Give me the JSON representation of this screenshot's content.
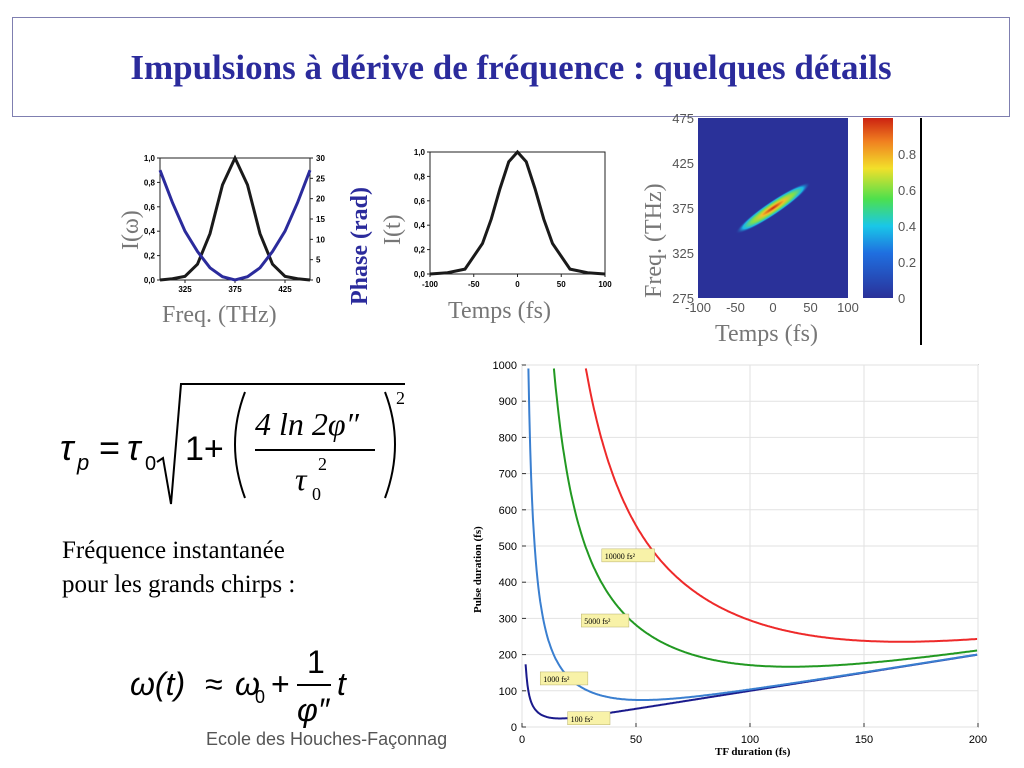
{
  "slide": {
    "title": "Impulsions à dérive de fréquence : quelques détails",
    "instant_freq_line1": "Fréquence instantanée",
    "instant_freq_line2": "pour les grands chirps :",
    "footer": "Ecole des Houches-Façonnag"
  },
  "formula_tau": {
    "tau": "τ",
    "sub_p": "p",
    "equals": "=",
    "tau0": "τ",
    "sub0": "0",
    "one_plus": "1+",
    "numerator": "4 ln 2φ″",
    "den_tau": "τ",
    "den_sub": "0",
    "den_sup": "2",
    "outer_exp": "2"
  },
  "formula_omega": {
    "omega_t": "ω(t)",
    "approx": "≈",
    "omega0": "ω",
    "sub0": "0",
    "plus": "+",
    "num": "1",
    "den": "φ″",
    "t": "t"
  },
  "chart_data": [
    {
      "type": "line",
      "xlabel": "Freq. (THz)",
      "ylabel": "I(ω)",
      "y2label": "Phase (rad)",
      "xlim": [
        300,
        450
      ],
      "ylim": [
        0,
        1.0
      ],
      "y2lim": [
        0,
        30
      ],
      "x_ticks": [
        "325",
        "375",
        "425"
      ],
      "y_ticks": [
        "0,0",
        "0,2",
        "0,4",
        "0,6",
        "0,8",
        "1,0"
      ],
      "y2_ticks": [
        "0",
        "5",
        "10",
        "15",
        "20",
        "25",
        "30"
      ],
      "series": [
        {
          "x": [
            300,
            312.5,
            325,
            337.5,
            350,
            362.5,
            375,
            387.5,
            400,
            412.5,
            425,
            437.5,
            450
          ],
          "values": [
            0.0,
            0.01,
            0.03,
            0.13,
            0.38,
            0.78,
            1.0,
            0.78,
            0.38,
            0.13,
            0.03,
            0.01,
            0.0
          ],
          "color": "#1a1a1a"
        },
        {
          "x": [
            300,
            312.5,
            325,
            337.5,
            350,
            362.5,
            375,
            387.5,
            400,
            412.5,
            425,
            437.5,
            450
          ],
          "values": [
            27,
            19,
            12,
            7,
            3,
            0.8,
            0,
            0.8,
            3,
            7,
            12,
            19,
            27
          ],
          "axis": "right",
          "color": "#2b2b9c"
        }
      ]
    },
    {
      "type": "line",
      "xlabel": "Temps (fs)",
      "ylabel": "I(t)",
      "xlim": [
        -100,
        100
      ],
      "ylim": [
        0,
        1.0
      ],
      "x_ticks": [
        "-100",
        "-50",
        "0",
        "50",
        "100"
      ],
      "y_ticks": [
        "0,0",
        "0,2",
        "0,4",
        "0,6",
        "0,8",
        "1,0"
      ],
      "series": [
        {
          "x": [
            -100,
            -80,
            -60,
            -40,
            -30,
            -20,
            -10,
            0,
            10,
            20,
            30,
            40,
            60,
            80,
            100
          ],
          "values": [
            0.0,
            0.01,
            0.04,
            0.25,
            0.45,
            0.7,
            0.92,
            1.0,
            0.92,
            0.7,
            0.45,
            0.25,
            0.04,
            0.01,
            0.0
          ],
          "color": "#1a1a1a"
        }
      ]
    },
    {
      "type": "heatmap",
      "xlabel": "Temps (fs)",
      "ylabel": "Freq. (THz)",
      "xlim": [
        -100,
        100
      ],
      "ylim": [
        275,
        475
      ],
      "x_ticks": [
        "-100",
        "-50",
        "0",
        "50",
        "100"
      ],
      "y_ticks": [
        "275",
        "325",
        "375",
        "425",
        "475"
      ],
      "colorbar_ticks": [
        "0",
        "0.2",
        "0.4",
        "0.6",
        "0.8"
      ],
      "colors": {
        "background": "#2a3199",
        "peak": "#cc2211"
      }
    },
    {
      "type": "line",
      "xlabel": "TF duration (fs)",
      "ylabel": "Pulse duration (fs)",
      "xlim": [
        0,
        200
      ],
      "ylim": [
        0,
        1000
      ],
      "x_ticks": [
        "0",
        "50",
        "100",
        "150",
        "200"
      ],
      "y_ticks": [
        "0",
        "100",
        "200",
        "300",
        "400",
        "500",
        "600",
        "700",
        "800",
        "900",
        "1000"
      ],
      "series": [
        {
          "name": "100 fs²",
          "phi2": 100,
          "color": "#1a1a8c"
        },
        {
          "name": "1000 fs²",
          "phi2": 1000,
          "color": "#3a7fd0"
        },
        {
          "name": "5000 fs²",
          "phi2": 5000,
          "color": "#229922"
        },
        {
          "name": "10000 fs²",
          "phi2": 10000,
          "color": "#ee2a2a"
        }
      ]
    }
  ]
}
